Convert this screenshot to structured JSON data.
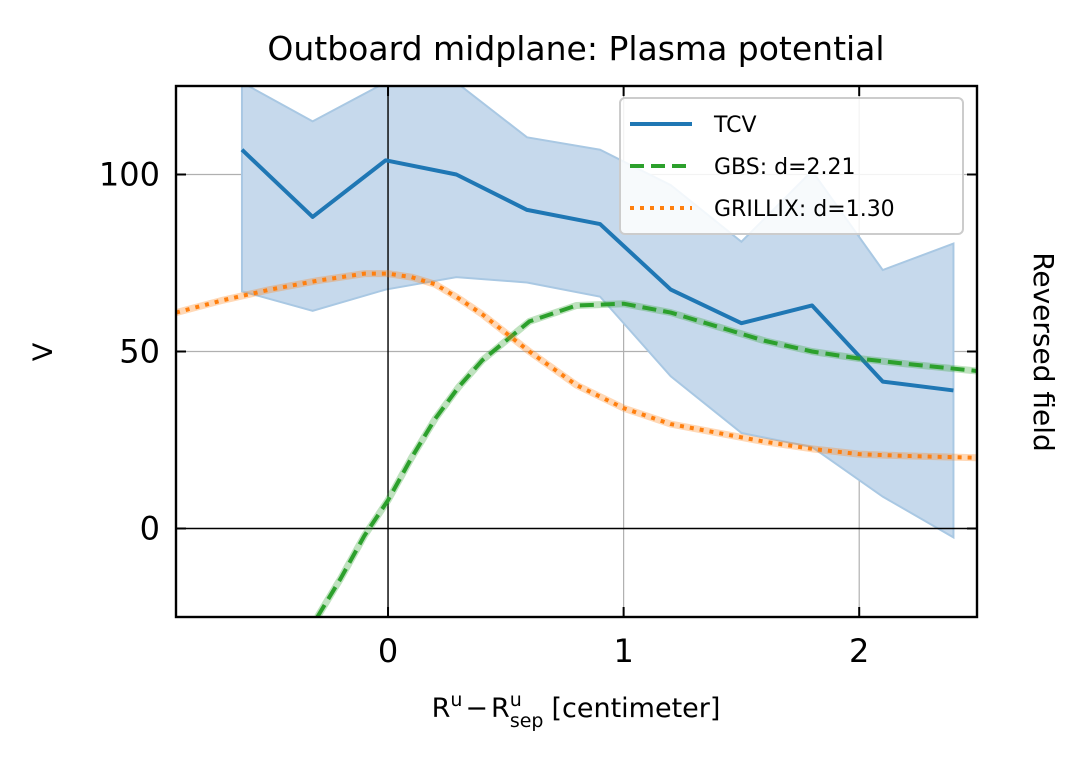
{
  "chart_data": {
    "type": "line",
    "title": "Outboard midplane: Plasma potential",
    "xlabel": "R^u - R^u_sep [centimeter]",
    "xlabel_parts": {
      "r": "R",
      "u": "u",
      "minus": "−",
      "sep": "sep",
      "unit": "[centimeter]"
    },
    "ylabel": "V",
    "side_label": "Reversed field",
    "xlim": [
      -0.9,
      2.5
    ],
    "ylim": [
      -25,
      125
    ],
    "xticks": [
      0,
      1,
      2
    ],
    "xtick_labels": [
      "0",
      "1",
      "2"
    ],
    "yticks": [
      0,
      50,
      100
    ],
    "ytick_labels": [
      "0",
      "50",
      "100"
    ],
    "grid": true,
    "legend_position": "top-right",
    "series": [
      {
        "name": "TCV",
        "style": "solid",
        "color": "#1f77b4",
        "x": [
          -0.62,
          -0.32,
          -0.01,
          0.29,
          0.59,
          0.9,
          1.2,
          1.5,
          1.8,
          2.1,
          2.4
        ],
        "y": [
          107,
          88,
          104,
          100,
          90,
          86,
          67.5,
          58,
          63,
          41.5,
          39
        ],
        "band_upper": [
          126,
          115,
          126,
          126,
          110.5,
          107,
          97,
          81,
          101,
          73,
          80.5
        ],
        "band_lower": [
          67,
          61.5,
          67.5,
          71,
          69.5,
          65.5,
          43,
          27,
          23,
          9,
          -2.5
        ],
        "band_color": "#c6d9ec"
      },
      {
        "name": "GBS: d=2.21",
        "style": "dashed",
        "color": "#2ca02c",
        "x": [
          -0.3,
          -0.2,
          -0.1,
          0.0,
          0.1,
          0.2,
          0.3,
          0.4,
          0.6,
          0.8,
          1.0,
          1.2,
          1.4,
          1.6,
          1.8,
          2.0,
          2.2,
          2.5
        ],
        "y": [
          -25,
          -14,
          -2,
          8,
          20,
          31,
          40,
          47.5,
          58.5,
          63,
          63.5,
          61,
          57,
          53,
          50,
          48,
          46.5,
          44.5
        ]
      },
      {
        "name": "GRILLIX: d=1.30",
        "style": "dotted",
        "color": "#ff7f0e",
        "x": [
          -0.9,
          -0.7,
          -0.5,
          -0.3,
          -0.1,
          0.0,
          0.1,
          0.2,
          0.3,
          0.4,
          0.6,
          0.8,
          1.0,
          1.2,
          1.4,
          1.6,
          1.8,
          2.0,
          2.2,
          2.5
        ],
        "y": [
          61,
          64.5,
          67.5,
          70,
          72,
          72,
          71,
          69,
          65,
          60.5,
          50,
          40.5,
          34,
          29.5,
          27,
          24.5,
          22.5,
          21,
          20.5,
          20
        ]
      }
    ]
  }
}
